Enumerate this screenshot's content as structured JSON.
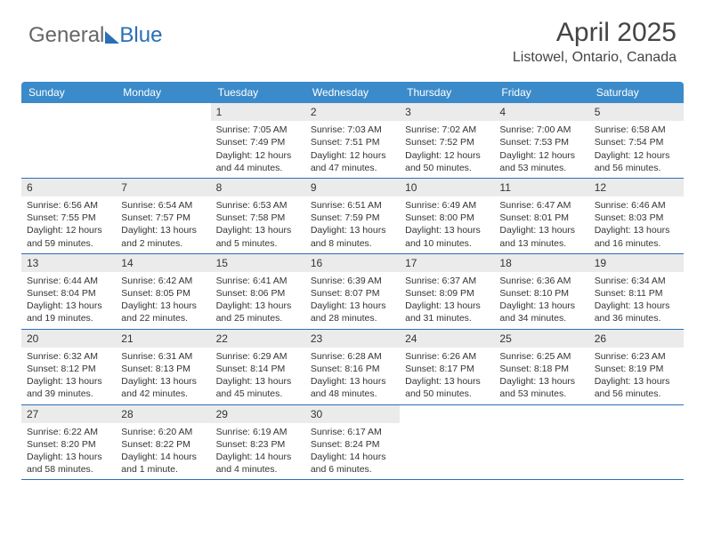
{
  "logo": {
    "text1": "General",
    "text2": "Blue"
  },
  "title": "April 2025",
  "location": "Listowel, Ontario, Canada",
  "colors": {
    "header_bar": "#3b8bca",
    "rule": "#2a6fb5",
    "daynum_bg": "#ebebeb",
    "text": "#333333",
    "background": "#ffffff"
  },
  "fonts": {
    "title_size_pt": 22,
    "location_size_pt": 12,
    "dow_size_pt": 9,
    "body_size_pt": 8
  },
  "day_names": [
    "Sunday",
    "Monday",
    "Tuesday",
    "Wednesday",
    "Thursday",
    "Friday",
    "Saturday"
  ],
  "weeks": [
    [
      null,
      null,
      {
        "n": "1",
        "sr": "Sunrise: 7:05 AM",
        "ss": "Sunset: 7:49 PM",
        "dl1": "Daylight: 12 hours",
        "dl2": "and 44 minutes."
      },
      {
        "n": "2",
        "sr": "Sunrise: 7:03 AM",
        "ss": "Sunset: 7:51 PM",
        "dl1": "Daylight: 12 hours",
        "dl2": "and 47 minutes."
      },
      {
        "n": "3",
        "sr": "Sunrise: 7:02 AM",
        "ss": "Sunset: 7:52 PM",
        "dl1": "Daylight: 12 hours",
        "dl2": "and 50 minutes."
      },
      {
        "n": "4",
        "sr": "Sunrise: 7:00 AM",
        "ss": "Sunset: 7:53 PM",
        "dl1": "Daylight: 12 hours",
        "dl2": "and 53 minutes."
      },
      {
        "n": "5",
        "sr": "Sunrise: 6:58 AM",
        "ss": "Sunset: 7:54 PM",
        "dl1": "Daylight: 12 hours",
        "dl2": "and 56 minutes."
      }
    ],
    [
      {
        "n": "6",
        "sr": "Sunrise: 6:56 AM",
        "ss": "Sunset: 7:55 PM",
        "dl1": "Daylight: 12 hours",
        "dl2": "and 59 minutes."
      },
      {
        "n": "7",
        "sr": "Sunrise: 6:54 AM",
        "ss": "Sunset: 7:57 PM",
        "dl1": "Daylight: 13 hours",
        "dl2": "and 2 minutes."
      },
      {
        "n": "8",
        "sr": "Sunrise: 6:53 AM",
        "ss": "Sunset: 7:58 PM",
        "dl1": "Daylight: 13 hours",
        "dl2": "and 5 minutes."
      },
      {
        "n": "9",
        "sr": "Sunrise: 6:51 AM",
        "ss": "Sunset: 7:59 PM",
        "dl1": "Daylight: 13 hours",
        "dl2": "and 8 minutes."
      },
      {
        "n": "10",
        "sr": "Sunrise: 6:49 AM",
        "ss": "Sunset: 8:00 PM",
        "dl1": "Daylight: 13 hours",
        "dl2": "and 10 minutes."
      },
      {
        "n": "11",
        "sr": "Sunrise: 6:47 AM",
        "ss": "Sunset: 8:01 PM",
        "dl1": "Daylight: 13 hours",
        "dl2": "and 13 minutes."
      },
      {
        "n": "12",
        "sr": "Sunrise: 6:46 AM",
        "ss": "Sunset: 8:03 PM",
        "dl1": "Daylight: 13 hours",
        "dl2": "and 16 minutes."
      }
    ],
    [
      {
        "n": "13",
        "sr": "Sunrise: 6:44 AM",
        "ss": "Sunset: 8:04 PM",
        "dl1": "Daylight: 13 hours",
        "dl2": "and 19 minutes."
      },
      {
        "n": "14",
        "sr": "Sunrise: 6:42 AM",
        "ss": "Sunset: 8:05 PM",
        "dl1": "Daylight: 13 hours",
        "dl2": "and 22 minutes."
      },
      {
        "n": "15",
        "sr": "Sunrise: 6:41 AM",
        "ss": "Sunset: 8:06 PM",
        "dl1": "Daylight: 13 hours",
        "dl2": "and 25 minutes."
      },
      {
        "n": "16",
        "sr": "Sunrise: 6:39 AM",
        "ss": "Sunset: 8:07 PM",
        "dl1": "Daylight: 13 hours",
        "dl2": "and 28 minutes."
      },
      {
        "n": "17",
        "sr": "Sunrise: 6:37 AM",
        "ss": "Sunset: 8:09 PM",
        "dl1": "Daylight: 13 hours",
        "dl2": "and 31 minutes."
      },
      {
        "n": "18",
        "sr": "Sunrise: 6:36 AM",
        "ss": "Sunset: 8:10 PM",
        "dl1": "Daylight: 13 hours",
        "dl2": "and 34 minutes."
      },
      {
        "n": "19",
        "sr": "Sunrise: 6:34 AM",
        "ss": "Sunset: 8:11 PM",
        "dl1": "Daylight: 13 hours",
        "dl2": "and 36 minutes."
      }
    ],
    [
      {
        "n": "20",
        "sr": "Sunrise: 6:32 AM",
        "ss": "Sunset: 8:12 PM",
        "dl1": "Daylight: 13 hours",
        "dl2": "and 39 minutes."
      },
      {
        "n": "21",
        "sr": "Sunrise: 6:31 AM",
        "ss": "Sunset: 8:13 PM",
        "dl1": "Daylight: 13 hours",
        "dl2": "and 42 minutes."
      },
      {
        "n": "22",
        "sr": "Sunrise: 6:29 AM",
        "ss": "Sunset: 8:14 PM",
        "dl1": "Daylight: 13 hours",
        "dl2": "and 45 minutes."
      },
      {
        "n": "23",
        "sr": "Sunrise: 6:28 AM",
        "ss": "Sunset: 8:16 PM",
        "dl1": "Daylight: 13 hours",
        "dl2": "and 48 minutes."
      },
      {
        "n": "24",
        "sr": "Sunrise: 6:26 AM",
        "ss": "Sunset: 8:17 PM",
        "dl1": "Daylight: 13 hours",
        "dl2": "and 50 minutes."
      },
      {
        "n": "25",
        "sr": "Sunrise: 6:25 AM",
        "ss": "Sunset: 8:18 PM",
        "dl1": "Daylight: 13 hours",
        "dl2": "and 53 minutes."
      },
      {
        "n": "26",
        "sr": "Sunrise: 6:23 AM",
        "ss": "Sunset: 8:19 PM",
        "dl1": "Daylight: 13 hours",
        "dl2": "and 56 minutes."
      }
    ],
    [
      {
        "n": "27",
        "sr": "Sunrise: 6:22 AM",
        "ss": "Sunset: 8:20 PM",
        "dl1": "Daylight: 13 hours",
        "dl2": "and 58 minutes."
      },
      {
        "n": "28",
        "sr": "Sunrise: 6:20 AM",
        "ss": "Sunset: 8:22 PM",
        "dl1": "Daylight: 14 hours",
        "dl2": "and 1 minute."
      },
      {
        "n": "29",
        "sr": "Sunrise: 6:19 AM",
        "ss": "Sunset: 8:23 PM",
        "dl1": "Daylight: 14 hours",
        "dl2": "and 4 minutes."
      },
      {
        "n": "30",
        "sr": "Sunrise: 6:17 AM",
        "ss": "Sunset: 8:24 PM",
        "dl1": "Daylight: 14 hours",
        "dl2": "and 6 minutes."
      },
      null,
      null,
      null
    ]
  ]
}
